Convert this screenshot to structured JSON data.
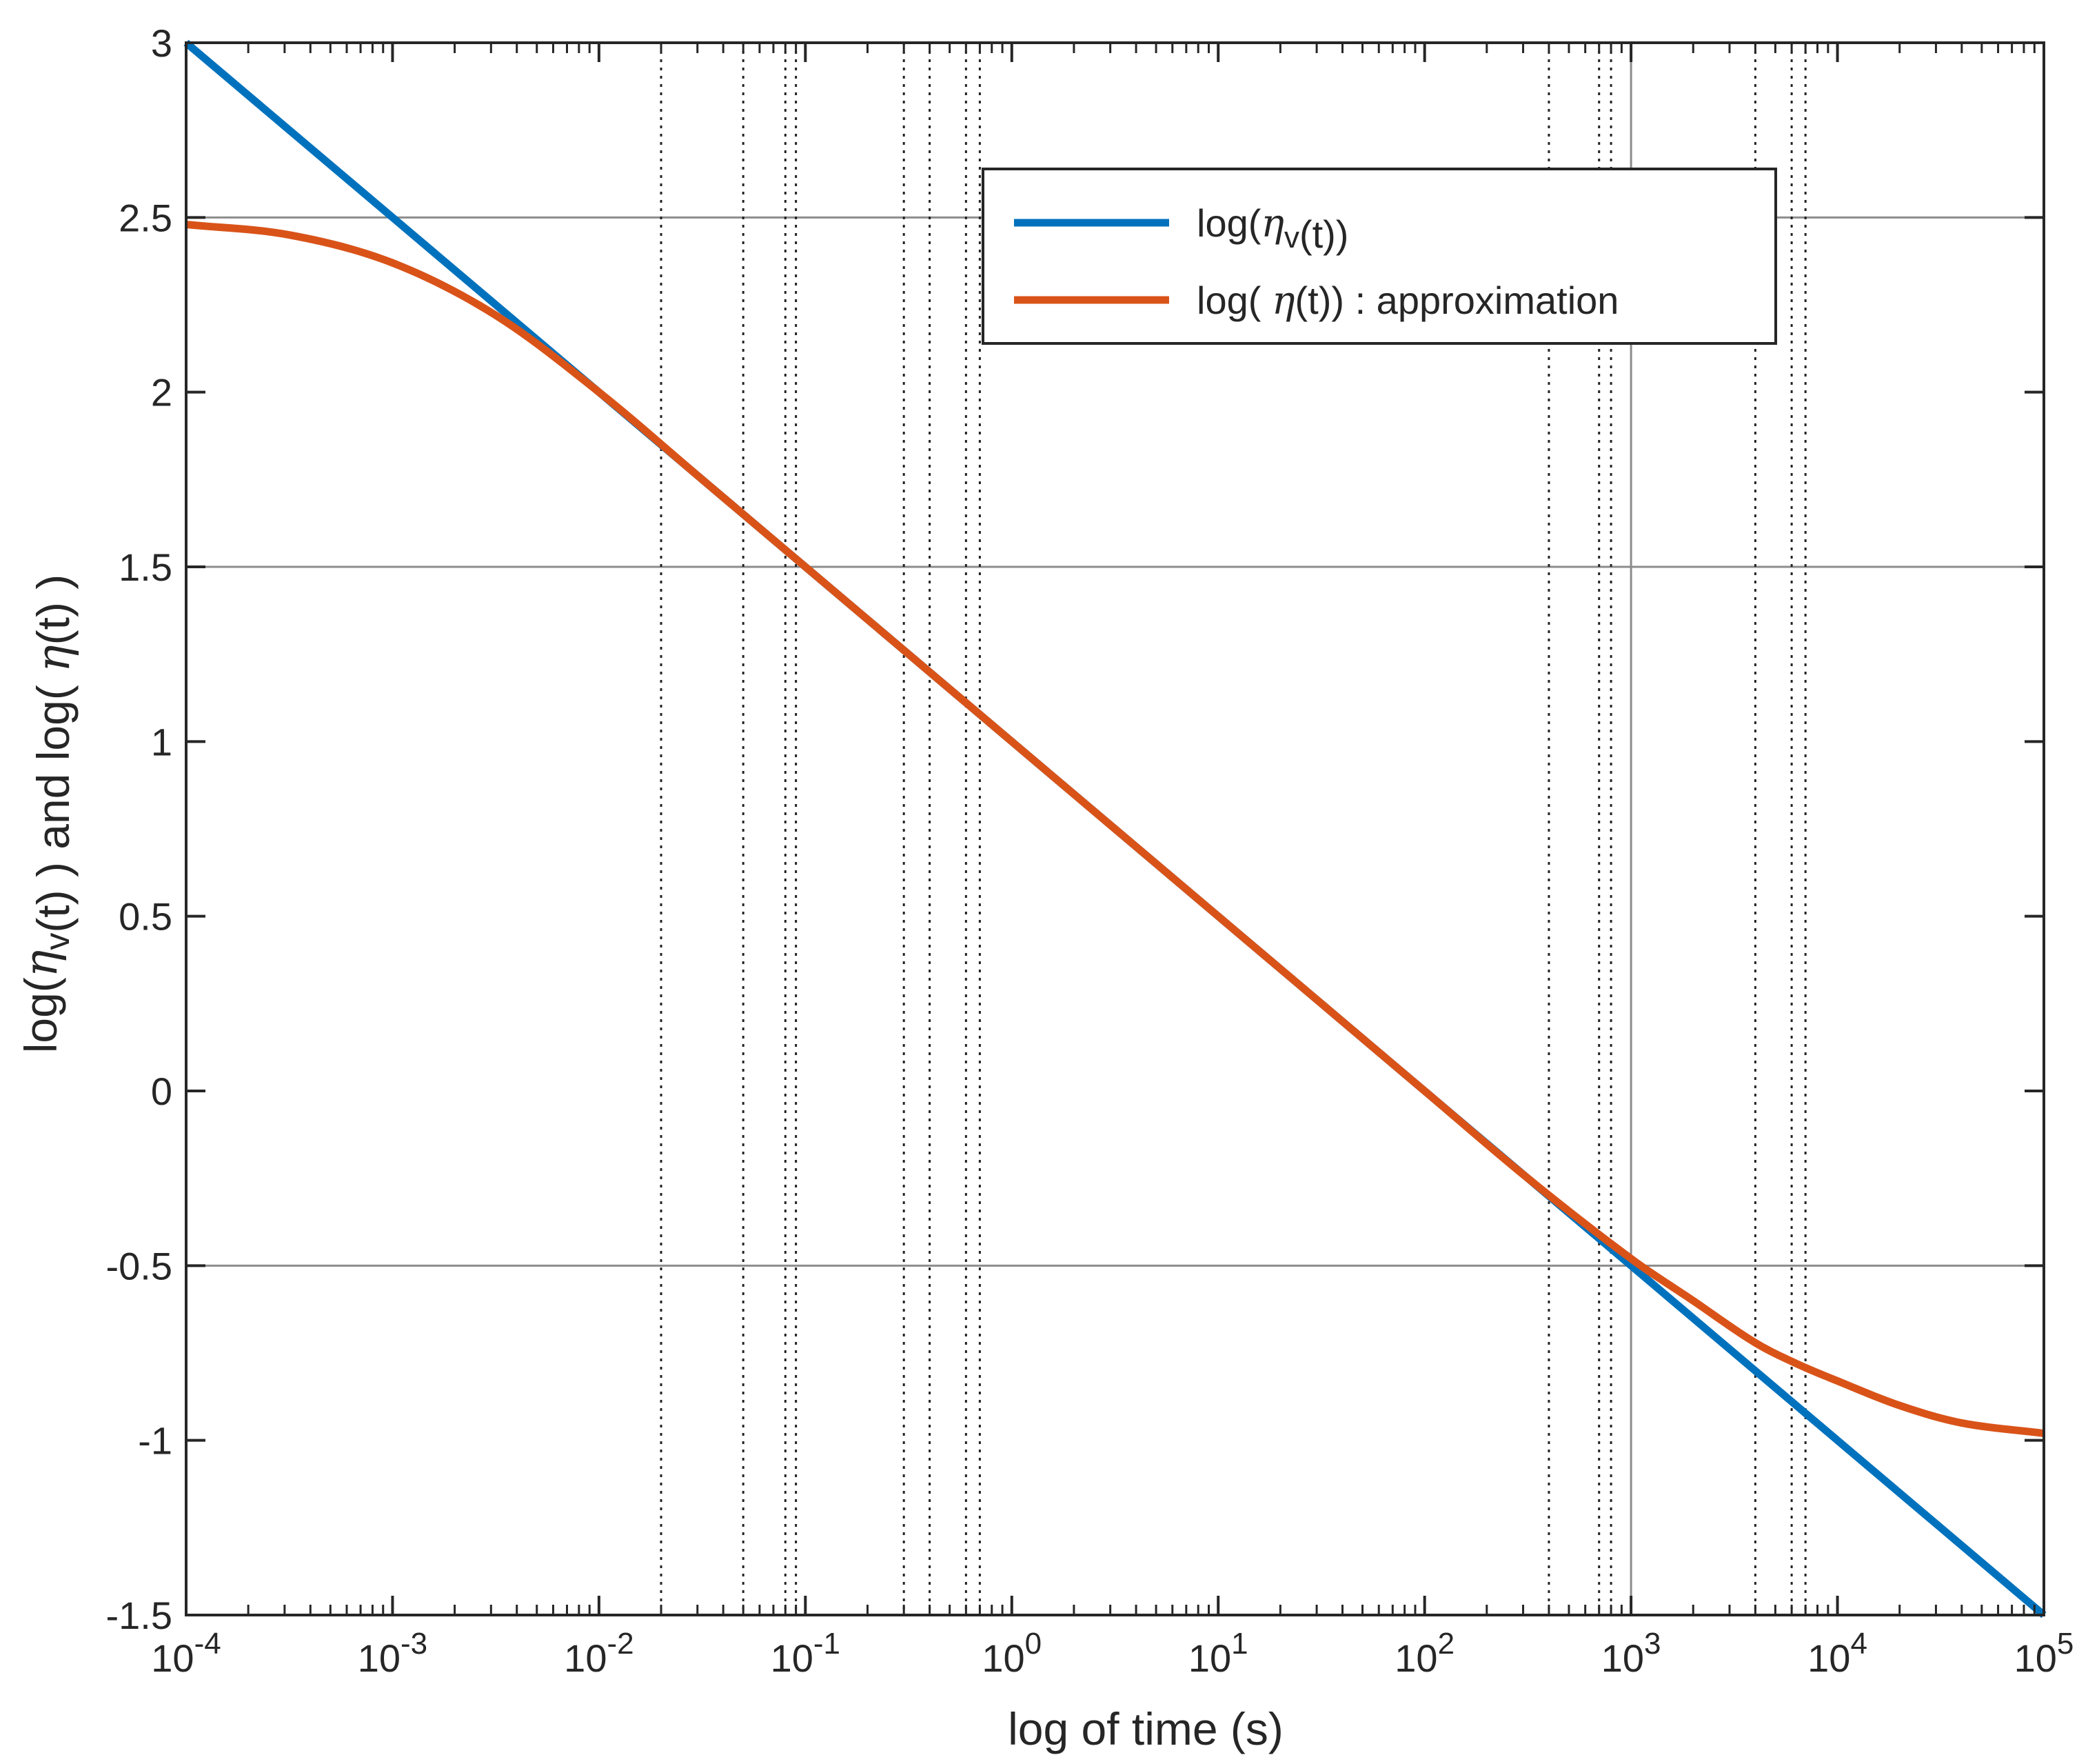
{
  "chart_data": {
    "type": "line",
    "xscale": "log",
    "xlim_log10": [
      -4,
      5
    ],
    "ylim": [
      -1.5,
      3
    ],
    "xlabel": "log of time (s)",
    "ylabel_parts": [
      "log(",
      "η",
      "v",
      "(t) )  and  log( ",
      "η",
      "(t) )"
    ],
    "x_ticks": [
      {
        "base": "10",
        "exp": "-4"
      },
      {
        "base": "10",
        "exp": "-3"
      },
      {
        "base": "10",
        "exp": "-2"
      },
      {
        "base": "10",
        "exp": "-1"
      },
      {
        "base": "10",
        "exp": "0"
      },
      {
        "base": "10",
        "exp": "1"
      },
      {
        "base": "10",
        "exp": "2"
      },
      {
        "base": "10",
        "exp": "3"
      },
      {
        "base": "10",
        "exp": "4"
      },
      {
        "base": "10",
        "exp": "5"
      }
    ],
    "y_ticks": [
      "-1.5",
      "-1",
      "-0.5",
      "0",
      "0.5",
      "1",
      "1.5",
      "2",
      "2.5",
      "3"
    ],
    "y_gridlines": [
      -0.5,
      1.5,
      2.5
    ],
    "x_solid_gridlines": [
      1000
    ],
    "x_dotted_lines": [
      0.02,
      0.05,
      0.08,
      0.09,
      0.3,
      0.4,
      0.6,
      0.7,
      400,
      700,
      800,
      4000,
      6000,
      7000
    ],
    "series": [
      {
        "name": "log(ηv(t))",
        "legend_parts": [
          "log(",
          "η",
          "v",
          "(t))"
        ],
        "color": "#0072BD",
        "log10_t": [
          -4,
          -3,
          -2,
          -1,
          0,
          1,
          2,
          3,
          4,
          5
        ],
        "y": [
          3.0,
          2.5,
          2.0,
          1.5,
          1.0,
          0.5,
          0.0,
          -0.5,
          -1.0,
          -1.5
        ]
      },
      {
        "name": "log( η(t)) : approximation",
        "legend_parts": [
          "log( ",
          "η",
          "(t)) : approximation"
        ],
        "color": "#D95319",
        "log10_t": [
          -4,
          -3.5,
          -3,
          -2.5,
          -2,
          -1.5,
          -1,
          0,
          1,
          2,
          2.5,
          3,
          3.3,
          3.6,
          3.8,
          4,
          4.3,
          4.6,
          5
        ],
        "y": [
          2.48,
          2.45,
          2.37,
          2.22,
          2.0,
          1.75,
          1.5,
          1.0,
          0.5,
          0.0,
          -0.25,
          -0.48,
          -0.6,
          -0.72,
          -0.78,
          -0.83,
          -0.9,
          -0.95,
          -0.98
        ]
      }
    ],
    "legend_position": "top-right"
  }
}
